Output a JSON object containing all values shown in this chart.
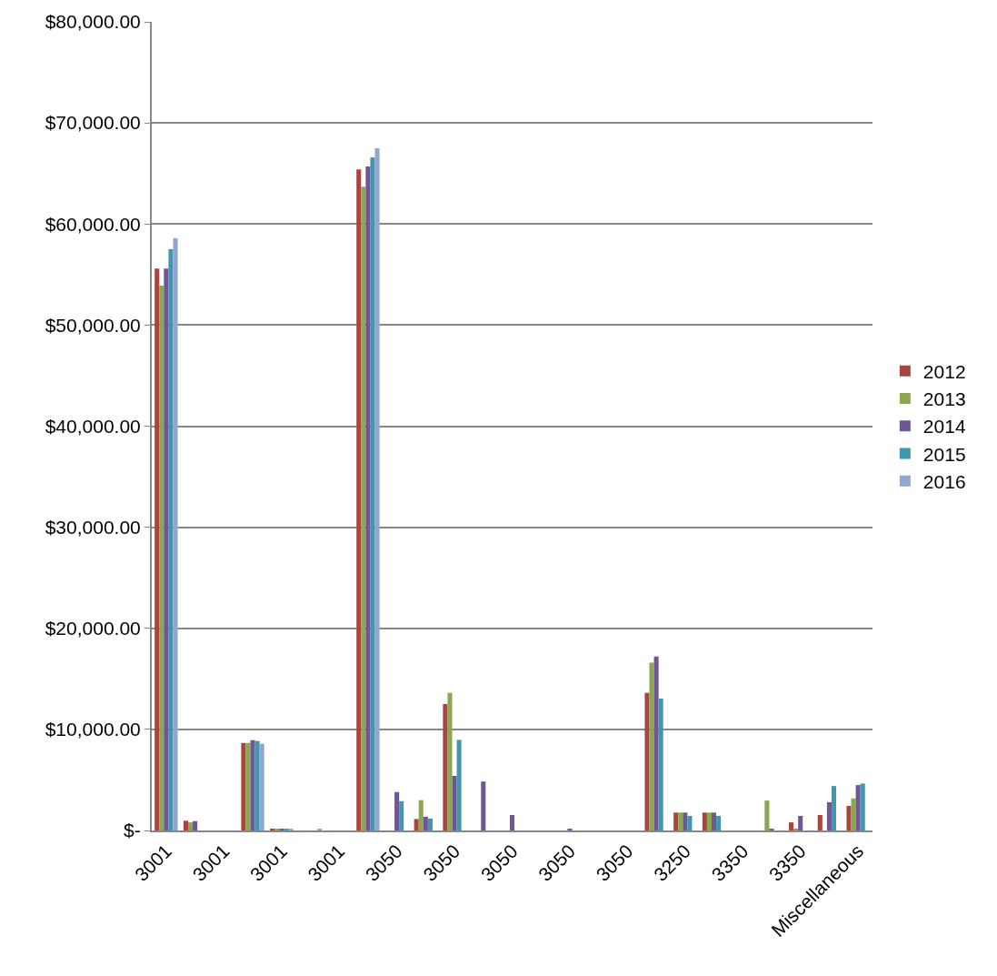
{
  "chart_data": {
    "type": "bar",
    "categories": [
      "3001",
      null,
      "3001",
      null,
      "3001",
      null,
      "3001",
      null,
      "3050",
      null,
      "3050",
      null,
      "3050",
      null,
      "3050",
      null,
      "3050",
      null,
      "3250",
      null,
      "3350",
      null,
      "3350",
      null,
      "Miscellaneous"
    ],
    "series": [
      {
        "name": "2012",
        "color": "#a9443f",
        "values": [
          55600,
          960,
          null,
          8660,
          150,
          null,
          null,
          65400,
          null,
          1130,
          12500,
          null,
          null,
          null,
          null,
          null,
          null,
          13600,
          1770,
          1770,
          null,
          null,
          800,
          1530,
          2430
        ]
      },
      {
        "name": "2013",
        "color": "#8ba74f",
        "values": [
          53900,
          800,
          null,
          8660,
          150,
          null,
          null,
          63700,
          null,
          3000,
          13600,
          null,
          null,
          null,
          null,
          null,
          null,
          16600,
          1770,
          1770,
          null,
          2960,
          100,
          null,
          3170
        ]
      },
      {
        "name": "2014",
        "color": "#6f5797",
        "values": [
          55600,
          920,
          null,
          8930,
          150,
          null,
          null,
          65700,
          3800,
          1360,
          5400,
          4840,
          1530,
          null,
          100,
          null,
          null,
          17200,
          1770,
          1770,
          null,
          100,
          1440,
          2800,
          4490
        ]
      },
      {
        "name": "2015",
        "color": "#3f97b0",
        "values": [
          57500,
          null,
          null,
          8850,
          150,
          null,
          null,
          66600,
          2900,
          1180,
          8960,
          null,
          null,
          null,
          null,
          null,
          null,
          13050,
          1440,
          1440,
          null,
          null,
          null,
          4400,
          4640
        ]
      },
      {
        "name": "2016",
        "color": "#91a6d2",
        "values": [
          58600,
          null,
          null,
          8580,
          150,
          100,
          null,
          67500,
          null,
          null,
          null,
          null,
          null,
          null,
          null,
          null,
          null,
          null,
          null,
          null,
          null,
          null,
          null,
          null,
          null
        ]
      }
    ],
    "ylim": [
      0,
      80000
    ],
    "yticks": [
      {
        "value": 0,
        "label": "$-"
      },
      {
        "value": 10000,
        "label": "$10,000.00"
      },
      {
        "value": 20000,
        "label": "$20,000.00"
      },
      {
        "value": 30000,
        "label": "$30,000.00"
      },
      {
        "value": 40000,
        "label": "$40,000.00"
      },
      {
        "value": 50000,
        "label": "$50,000.00"
      },
      {
        "value": 60000,
        "label": "$60,000.00"
      },
      {
        "value": 70000,
        "label": "$70,000.00"
      },
      {
        "value": 80000,
        "label": "$80,000.00"
      }
    ],
    "grid": "y",
    "legend": "right"
  }
}
